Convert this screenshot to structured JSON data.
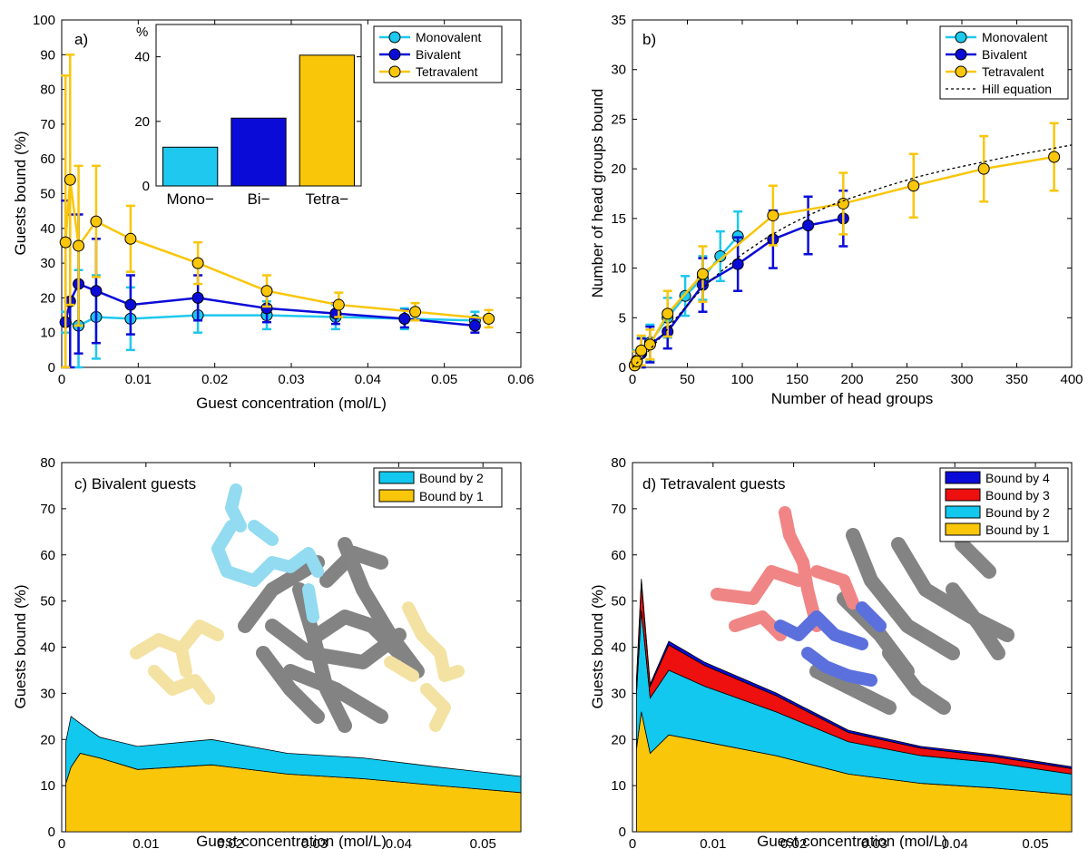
{
  "colors": {
    "mono": "#1ec8ee",
    "bi": "#0b0bd8",
    "tetra": "#f9c60a",
    "bound1": "#f9c60a",
    "bound2": "#12c8ee",
    "bound3": "#ee0f0f",
    "bound4": "#0b0bd8",
    "hill": "#000000"
  },
  "chart_data": [
    {
      "id": "a",
      "type": "line",
      "panel_label": "a)",
      "xlabel": "Guest concentration (mol/L)",
      "ylabel": "Guests bound (%)",
      "xlim": [
        0,
        0.06
      ],
      "ylim": [
        0,
        100
      ],
      "xticks": [
        "0",
        "0.01",
        "0.02",
        "0.03",
        "0.04",
        "0.05",
        "0.06"
      ],
      "yticks": [
        "0",
        "10",
        "20",
        "30",
        "40",
        "50",
        "60",
        "70",
        "80",
        "90",
        "100"
      ],
      "legend_position": "top-right",
      "series": [
        {
          "name": "Monovalent",
          "color_key": "mono",
          "points": [
            {
              "x": 0.0005,
              "y": 13,
              "err": 3
            },
            {
              "x": 0.0022,
              "y": 12,
              "err": 16
            },
            {
              "x": 0.0045,
              "y": 14.5,
              "err": 12
            },
            {
              "x": 0.009,
              "y": 14,
              "err": 9
            },
            {
              "x": 0.0178,
              "y": 15,
              "err": 5
            },
            {
              "x": 0.0268,
              "y": 15,
              "err": 4
            },
            {
              "x": 0.0358,
              "y": 14.5,
              "err": 3.5
            },
            {
              "x": 0.0448,
              "y": 14,
              "err": 3
            },
            {
              "x": 0.054,
              "y": 13.5,
              "err": 2.5
            }
          ]
        },
        {
          "name": "Bivalent",
          "color_key": "bi",
          "points": [
            {
              "x": 0.0005,
              "y": 13,
              "err": 35
            },
            {
              "x": 0.0011,
              "y": 19,
              "err": 25
            },
            {
              "x": 0.0022,
              "y": 24,
              "err": 20
            },
            {
              "x": 0.0045,
              "y": 22,
              "err": 15
            },
            {
              "x": 0.009,
              "y": 18,
              "err": 8.5
            },
            {
              "x": 0.0178,
              "y": 20,
              "err": 6.5
            },
            {
              "x": 0.0268,
              "y": 17,
              "err": 4
            },
            {
              "x": 0.0358,
              "y": 15.5,
              "err": 3
            },
            {
              "x": 0.0448,
              "y": 14,
              "err": 2.5
            },
            {
              "x": 0.054,
              "y": 12,
              "err": 2
            }
          ]
        },
        {
          "name": "Tetravalent",
          "color_key": "tetra",
          "points": [
            {
              "x": 0.0005,
              "y": 36,
              "err": 48
            },
            {
              "x": 0.0011,
              "y": 54,
              "err": 36
            },
            {
              "x": 0.0022,
              "y": 35,
              "err": 23
            },
            {
              "x": 0.0045,
              "y": 42,
              "err": 16
            },
            {
              "x": 0.009,
              "y": 37,
              "err": 9.5
            },
            {
              "x": 0.0178,
              "y": 30,
              "err": 6
            },
            {
              "x": 0.0268,
              "y": 22,
              "err": 4.5
            },
            {
              "x": 0.0362,
              "y": 18,
              "err": 3.5
            },
            {
              "x": 0.0462,
              "y": 16,
              "err": 2.5
            },
            {
              "x": 0.0558,
              "y": 14,
              "err": 2.5
            }
          ]
        }
      ]
    },
    {
      "id": "a-inset",
      "type": "bar",
      "unit_label": "%",
      "categories": [
        "Mono−",
        "Bi−",
        "Tetra−"
      ],
      "values": [
        12,
        21,
        40.5
      ],
      "color_keys": [
        "mono",
        "bi",
        "tetra"
      ],
      "ylim": [
        0,
        50
      ],
      "yticks": [
        "0",
        "20",
        "40"
      ]
    },
    {
      "id": "b",
      "type": "line",
      "panel_label": "b)",
      "xlabel": "Number of head groups",
      "ylabel": "Number of head groups bound",
      "xlim": [
        0,
        400
      ],
      "ylim": [
        0,
        35
      ],
      "xticks": [
        "0",
        "50",
        "100",
        "150",
        "200",
        "250",
        "300",
        "350",
        "400"
      ],
      "yticks": [
        "0",
        "5",
        "10",
        "15",
        "20",
        "25",
        "30",
        "35"
      ],
      "legend_position": "top-right",
      "series": [
        {
          "name": "Monovalent",
          "color_key": "mono",
          "points": [
            {
              "x": 2,
              "y": 0.2,
              "err": 0.5
            },
            {
              "x": 4,
              "y": 0.7,
              "err": 1
            },
            {
              "x": 8,
              "y": 1.5,
              "err": 1.5
            },
            {
              "x": 16,
              "y": 2.5,
              "err": 1.8
            },
            {
              "x": 32,
              "y": 5,
              "err": 2
            },
            {
              "x": 48,
              "y": 7.2,
              "err": 2
            },
            {
              "x": 64,
              "y": 9,
              "err": 2.2
            },
            {
              "x": 80,
              "y": 11.2,
              "err": 2.5
            },
            {
              "x": 96,
              "y": 13.2,
              "err": 2.5
            }
          ]
        },
        {
          "name": "Bivalent",
          "color_key": "bi",
          "points": [
            {
              "x": 2,
              "y": 0.2,
              "err": 0.5
            },
            {
              "x": 4,
              "y": 0.6,
              "err": 1
            },
            {
              "x": 8,
              "y": 1.4,
              "err": 1.5
            },
            {
              "x": 16,
              "y": 2.3,
              "err": 1.8
            },
            {
              "x": 32,
              "y": 3.6,
              "err": 1.7
            },
            {
              "x": 64,
              "y": 8.3,
              "err": 2.7
            },
            {
              "x": 96,
              "y": 10.4,
              "err": 2.7
            },
            {
              "x": 128,
              "y": 12.9,
              "err": 2.9
            },
            {
              "x": 160,
              "y": 14.3,
              "err": 2.9
            },
            {
              "x": 192,
              "y": 15,
              "err": 2.8
            }
          ]
        },
        {
          "name": "Tetravalent",
          "color_key": "tetra",
          "points": [
            {
              "x": 2,
              "y": 0.2,
              "err": 0.5
            },
            {
              "x": 4,
              "y": 0.6,
              "err": 1
            },
            {
              "x": 8,
              "y": 1.7,
              "err": 1.5
            },
            {
              "x": 16,
              "y": 2.3,
              "err": 1.5
            },
            {
              "x": 32,
              "y": 5.4,
              "err": 2.3
            },
            {
              "x": 64,
              "y": 9.4,
              "err": 2.8
            },
            {
              "x": 128,
              "y": 15.3,
              "err": 3
            },
            {
              "x": 192,
              "y": 16.5,
              "err": 3.1
            },
            {
              "x": 256,
              "y": 18.3,
              "err": 3.2
            },
            {
              "x": 320,
              "y": 20,
              "err": 3.3
            },
            {
              "x": 384,
              "y": 21.2,
              "err": 3.4
            }
          ]
        },
        {
          "name": "Hill equation",
          "color_key": "hill",
          "dashed": true,
          "x": [
            0,
            10,
            20,
            30,
            40,
            50,
            60,
            70,
            80,
            90,
            100,
            120,
            140,
            160,
            180,
            200,
            230,
            260,
            290,
            320,
            350,
            380,
            400
          ],
          "y": [
            0,
            1.1,
            2.3,
            3.6,
            5.0,
            6.3,
            7.5,
            8.6,
            9.6,
            10.5,
            11.4,
            12.9,
            14.2,
            15.3,
            16.3,
            17.1,
            18.2,
            19.2,
            20.0,
            20.7,
            21.4,
            22.0,
            22.4
          ]
        }
      ]
    },
    {
      "id": "c",
      "type": "area",
      "panel_label": "c) Bivalent guests",
      "xlabel": "Guest concentration (mol/L)",
      "ylabel": "Guests bound (%)",
      "xlim": [
        0,
        0.0545
      ],
      "ylim": [
        0,
        80
      ],
      "xticks": [
        "0",
        "0.01",
        "0.02",
        "0.03",
        "0.04",
        "0.05"
      ],
      "yticks": [
        "0",
        "10",
        "20",
        "30",
        "40",
        "50",
        "60",
        "70",
        "80"
      ],
      "legend_position": "top-right",
      "x": [
        0.0005,
        0.0011,
        0.0022,
        0.0045,
        0.009,
        0.0178,
        0.0268,
        0.0358,
        0.0448,
        0.0545
      ],
      "series": [
        {
          "name": "Bound by 2",
          "color_key": "bound2",
          "values": [
            9,
            11,
            6.5,
            4.5,
            5,
            5.5,
            4.5,
            4.5,
            4,
            3.5
          ]
        },
        {
          "name": "Bound by 1",
          "color_key": "bound1",
          "values": [
            10.5,
            14,
            17,
            16,
            13.5,
            14.5,
            12.5,
            11.5,
            10,
            8.5
          ]
        }
      ]
    },
    {
      "id": "d",
      "type": "area",
      "panel_label": "d) Tetravalent guests",
      "xlabel": "Guest concentration (mol/L)",
      "ylabel": "Guests bound (%)",
      "xlim": [
        0,
        0.0545
      ],
      "ylim": [
        0,
        80
      ],
      "xticks": [
        "0",
        "0.01",
        "0.02",
        "0.03",
        "0.04",
        "0.05"
      ],
      "yticks": [
        "0",
        "10",
        "20",
        "30",
        "40",
        "50",
        "60",
        "70",
        "80"
      ],
      "legend_position": "top-right",
      "x": [
        0.0005,
        0.0011,
        0.0022,
        0.0045,
        0.009,
        0.0178,
        0.0268,
        0.0358,
        0.0448,
        0.0545
      ],
      "series": [
        {
          "name": "Bound by 4",
          "color_key": "bound4",
          "values": [
            0.5,
            0.8,
            0.5,
            0.8,
            0.7,
            0.6,
            0.5,
            0.4,
            0.4,
            0.4
          ]
        },
        {
          "name": "Bound by 3",
          "color_key": "bound3",
          "values": [
            2.5,
            6,
            2.5,
            5.5,
            4.5,
            3.5,
            2,
            1.6,
            1.3,
            1.2
          ]
        },
        {
          "name": "Bound by 2",
          "color_key": "bound2",
          "values": [
            12,
            22,
            12,
            14,
            12,
            9.5,
            7,
            6,
            5.5,
            4.5
          ]
        },
        {
          "name": "Bound by 1",
          "color_key": "bound1",
          "values": [
            18,
            26,
            17,
            21,
            19.5,
            16.5,
            12.5,
            10.5,
            9.5,
            8
          ]
        }
      ]
    }
  ]
}
